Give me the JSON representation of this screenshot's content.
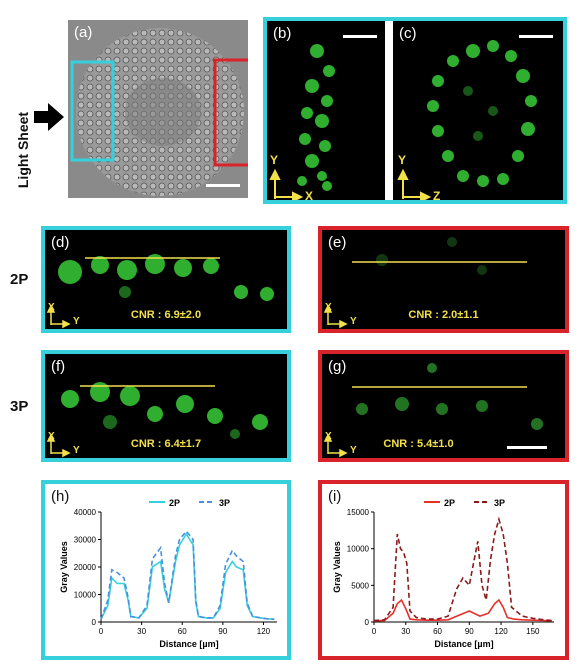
{
  "figure": {
    "side_label": "Light Sheet",
    "row_labels": {
      "two_photon": "2P",
      "three_photon": "3P"
    },
    "panels": {
      "a": {
        "label": "(a)"
      },
      "b": {
        "label": "(b)",
        "axis_v": "Y",
        "axis_h": "X"
      },
      "c": {
        "label": "(c)",
        "axis_v": "Y",
        "axis_h": "Z"
      },
      "d": {
        "label": "(d)",
        "axis_v": "X",
        "axis_h": "Y",
        "cnr": "CNR : 6.9±2.0"
      },
      "e": {
        "label": "(e)",
        "axis_v": "X",
        "axis_h": "Y",
        "cnr": "CNR : 2.0±1.1"
      },
      "f": {
        "label": "(f)",
        "axis_v": "X",
        "axis_h": "Y",
        "cnr": "CNR : 6.4±1.7"
      },
      "g": {
        "label": "(g)",
        "axis_v": "X",
        "axis_h": "Y",
        "cnr": "CNR : 5.4±1.0"
      },
      "h": {
        "label": "(h)"
      },
      "i": {
        "label": "(i)"
      }
    },
    "colors": {
      "cyan": "#35d0dc",
      "red": "#d9232a",
      "yellow": "#f2e04a"
    }
  },
  "chart_data": [
    {
      "type": "line",
      "panel": "h",
      "xlabel": "Distance [µm]",
      "ylabel": "Gray Values",
      "xlim": [
        0,
        130
      ],
      "ylim": [
        0,
        40000
      ],
      "xticks": [
        0,
        30,
        60,
        90,
        120
      ],
      "yticks": [
        0,
        10000,
        20000,
        30000,
        40000
      ],
      "ytick_labels": [
        "0",
        "10000",
        "20000",
        "30000",
        "40000"
      ],
      "series": [
        {
          "name": "2P",
          "color": "#35d0dc",
          "style": "solid",
          "x": [
            0,
            5,
            8,
            12,
            17,
            20,
            22,
            28,
            34,
            38,
            44,
            47,
            50,
            55,
            58,
            63,
            68,
            70,
            72,
            78,
            83,
            88,
            92,
            97,
            100,
            105,
            108,
            112,
            118,
            122,
            128
          ],
          "y": [
            1000,
            6000,
            16000,
            14000,
            14000,
            8000,
            2000,
            1500,
            5000,
            20000,
            22000,
            12000,
            7000,
            22000,
            28000,
            32000,
            28000,
            7000,
            2000,
            1500,
            1500,
            5000,
            18000,
            22000,
            20000,
            19000,
            6000,
            2000,
            1500,
            1200,
            1000
          ]
        },
        {
          "name": "3P",
          "color": "#4a8fe0",
          "style": "dashed",
          "x": [
            0,
            5,
            8,
            12,
            17,
            20,
            22,
            28,
            34,
            38,
            44,
            47,
            50,
            55,
            58,
            63,
            68,
            70,
            72,
            78,
            83,
            88,
            92,
            97,
            100,
            105,
            108,
            112,
            118,
            122,
            128
          ],
          "y": [
            1000,
            8000,
            19000,
            18000,
            16000,
            9000,
            2000,
            1500,
            6000,
            23000,
            27000,
            14000,
            7000,
            24000,
            30000,
            33000,
            30000,
            8000,
            2000,
            1500,
            1500,
            6000,
            21000,
            26000,
            24000,
            22000,
            7000,
            2000,
            1500,
            1200,
            1000
          ]
        }
      ],
      "legend": "top-center"
    },
    {
      "type": "line",
      "panel": "i",
      "xlabel": "Distance [µm]",
      "ylabel": "Gray Values",
      "xlim": [
        0,
        170
      ],
      "ylim": [
        0,
        15000
      ],
      "xticks": [
        0,
        30,
        60,
        90,
        120,
        150
      ],
      "yticks": [
        0,
        5000,
        10000,
        15000
      ],
      "ytick_labels": [
        "0",
        "5000",
        "10000",
        "15000"
      ],
      "series": [
        {
          "name": "2P",
          "color": "#e8302a",
          "style": "solid",
          "x": [
            0,
            10,
            18,
            22,
            26,
            30,
            34,
            40,
            50,
            60,
            70,
            80,
            90,
            100,
            108,
            114,
            118,
            122,
            126,
            132,
            140,
            150,
            160,
            168
          ],
          "y": [
            150,
            200,
            1200,
            2500,
            3000,
            1800,
            400,
            300,
            250,
            250,
            300,
            900,
            1500,
            800,
            1200,
            2500,
            3000,
            2000,
            600,
            400,
            300,
            250,
            200,
            150
          ]
        },
        {
          "name": "3P",
          "color": "#8b1a1a",
          "style": "dashed",
          "x": [
            0,
            10,
            18,
            22,
            25,
            28,
            31,
            34,
            40,
            50,
            60,
            70,
            78,
            84,
            90,
            94,
            98,
            102,
            106,
            110,
            114,
            118,
            122,
            126,
            130,
            140,
            150,
            160,
            168
          ],
          "y": [
            200,
            300,
            2000,
            12000,
            10000,
            9500,
            8000,
            1500,
            600,
            400,
            400,
            800,
            4500,
            6000,
            5000,
            8000,
            11000,
            5000,
            3000,
            8500,
            12000,
            14000,
            12000,
            8000,
            2000,
            800,
            500,
            300,
            200
          ]
        }
      ],
      "legend": "top-center"
    }
  ]
}
